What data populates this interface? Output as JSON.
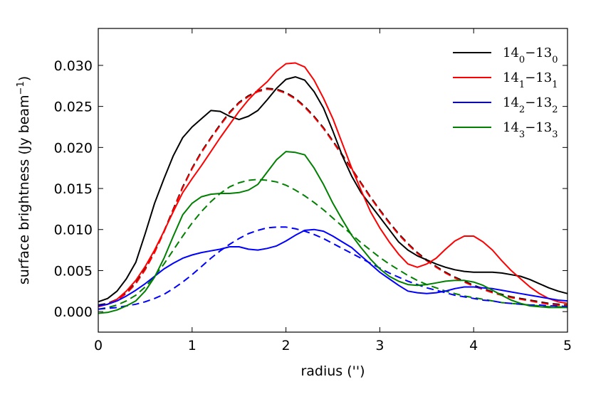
{
  "chart_data": {
    "type": "line",
    "xlabel": "radius ('')",
    "ylabel": "surface brightness (Jy beam",
    "ylabel_exp": "−1",
    "ylabel_close": ")",
    "xlim": [
      0,
      5
    ],
    "ylim": [
      -0.0025,
      0.0345
    ],
    "xticks": [
      0,
      1,
      2,
      3,
      4,
      5
    ],
    "xtick_labels": [
      "0",
      "1",
      "2",
      "3",
      "4",
      "5"
    ],
    "yticks": [
      0.0,
      0.005,
      0.01,
      0.015,
      0.02,
      0.025,
      0.03
    ],
    "ytick_labels": [
      "0.000",
      "0.005",
      "0.010",
      "0.015",
      "0.020",
      "0.025",
      "0.030"
    ],
    "grid": false,
    "legend_position": "top-right",
    "series": [
      {
        "name": "14_0-13_0",
        "legend": {
          "a": "14",
          "s1": "0",
          "b": "−13",
          "s2": "0"
        },
        "color": "#000000",
        "style": "solid",
        "x": [
          0,
          0.1,
          0.2,
          0.3,
          0.4,
          0.5,
          0.6,
          0.7,
          0.8,
          0.9,
          1.0,
          1.1,
          1.2,
          1.3,
          1.4,
          1.5,
          1.6,
          1.7,
          1.8,
          1.9,
          2.0,
          2.1,
          2.2,
          2.3,
          2.4,
          2.5,
          2.6,
          2.7,
          2.8,
          2.9,
          3.0,
          3.1,
          3.2,
          3.3,
          3.4,
          3.5,
          3.6,
          3.7,
          3.8,
          3.9,
          4.0,
          4.1,
          4.2,
          4.3,
          4.4,
          4.5,
          4.6,
          4.7,
          4.8,
          4.9,
          5.0
        ],
        "y": [
          0.0012,
          0.0016,
          0.0025,
          0.004,
          0.006,
          0.0095,
          0.0132,
          0.0162,
          0.019,
          0.0212,
          0.0225,
          0.0235,
          0.0245,
          0.0244,
          0.0238,
          0.0234,
          0.0238,
          0.0245,
          0.0258,
          0.0272,
          0.0283,
          0.0286,
          0.0282,
          0.0268,
          0.0248,
          0.022,
          0.019,
          0.0165,
          0.0145,
          0.013,
          0.0115,
          0.01,
          0.0085,
          0.0075,
          0.0068,
          0.0063,
          0.0058,
          0.0054,
          0.0051,
          0.0049,
          0.0048,
          0.0048,
          0.0048,
          0.0047,
          0.0045,
          0.0043,
          0.0039,
          0.0034,
          0.0029,
          0.0025,
          0.0022
        ]
      },
      {
        "name": "14_1-13_1",
        "legend": {
          "a": "14",
          "s1": "1",
          "b": "−13",
          "s2": "1"
        },
        "color": "#ff0000",
        "style": "solid",
        "x": [
          0,
          0.1,
          0.2,
          0.3,
          0.4,
          0.5,
          0.6,
          0.7,
          0.8,
          0.9,
          1.0,
          1.1,
          1.2,
          1.3,
          1.4,
          1.5,
          1.6,
          1.7,
          1.8,
          1.9,
          2.0,
          2.1,
          2.2,
          2.3,
          2.4,
          2.5,
          2.6,
          2.7,
          2.8,
          2.9,
          3.0,
          3.1,
          3.2,
          3.3,
          3.4,
          3.5,
          3.6,
          3.7,
          3.8,
          3.9,
          4.0,
          4.1,
          4.2,
          4.3,
          4.4,
          4.5,
          4.6,
          4.7,
          4.8,
          4.9,
          5.0
        ],
        "y": [
          0.0006,
          0.0009,
          0.0015,
          0.0025,
          0.0038,
          0.0055,
          0.0075,
          0.0098,
          0.0122,
          0.0145,
          0.0162,
          0.0178,
          0.0195,
          0.0212,
          0.0228,
          0.0244,
          0.0258,
          0.027,
          0.028,
          0.0293,
          0.0302,
          0.0303,
          0.0298,
          0.0282,
          0.026,
          0.0235,
          0.0205,
          0.0175,
          0.0148,
          0.0122,
          0.0102,
          0.0085,
          0.007,
          0.0058,
          0.0054,
          0.0058,
          0.0065,
          0.0076,
          0.0086,
          0.0092,
          0.0092,
          0.0085,
          0.0075,
          0.0062,
          0.005,
          0.004,
          0.003,
          0.0022,
          0.0016,
          0.0012,
          0.001
        ]
      },
      {
        "name": "14_2-13_2",
        "legend": {
          "a": "14",
          "s1": "2",
          "b": "−13",
          "s2": "2"
        },
        "color": "#0000ff",
        "style": "solid",
        "x": [
          0,
          0.1,
          0.2,
          0.3,
          0.4,
          0.5,
          0.6,
          0.7,
          0.8,
          0.9,
          1.0,
          1.1,
          1.2,
          1.3,
          1.4,
          1.5,
          1.6,
          1.7,
          1.8,
          1.9,
          2.0,
          2.1,
          2.2,
          2.3,
          2.4,
          2.5,
          2.6,
          2.7,
          2.8,
          2.9,
          3.0,
          3.1,
          3.2,
          3.3,
          3.4,
          3.5,
          3.6,
          3.7,
          3.8,
          3.9,
          4.0,
          4.1,
          4.2,
          4.3,
          4.4,
          4.5,
          4.6,
          4.7,
          4.8,
          4.9,
          5.0
        ],
        "y": [
          0.0007,
          0.0009,
          0.0013,
          0.0019,
          0.0026,
          0.0034,
          0.0043,
          0.0052,
          0.0059,
          0.0065,
          0.0069,
          0.0072,
          0.0074,
          0.0076,
          0.0079,
          0.0079,
          0.0076,
          0.0075,
          0.0077,
          0.008,
          0.0086,
          0.0093,
          0.0099,
          0.01,
          0.0098,
          0.0092,
          0.0085,
          0.0078,
          0.0068,
          0.0058,
          0.0048,
          0.004,
          0.0032,
          0.0025,
          0.0023,
          0.0022,
          0.0023,
          0.0025,
          0.0028,
          0.003,
          0.003,
          0.0029,
          0.0028,
          0.0026,
          0.0024,
          0.0022,
          0.002,
          0.0018,
          0.0016,
          0.0014,
          0.0013
        ]
      },
      {
        "name": "14_3-13_3",
        "legend": {
          "a": "14",
          "s1": "3",
          "b": "−13",
          "s2": "3"
        },
        "color": "#008000",
        "style": "solid",
        "x": [
          0,
          0.1,
          0.2,
          0.3,
          0.4,
          0.5,
          0.6,
          0.7,
          0.8,
          0.9,
          1.0,
          1.1,
          1.2,
          1.3,
          1.4,
          1.5,
          1.6,
          1.7,
          1.8,
          1.9,
          2.0,
          2.1,
          2.2,
          2.3,
          2.4,
          2.5,
          2.6,
          2.7,
          2.8,
          2.9,
          3.0,
          3.1,
          3.2,
          3.3,
          3.4,
          3.5,
          3.6,
          3.7,
          3.8,
          3.9,
          4.0,
          4.1,
          4.2,
          4.3,
          4.4,
          4.5,
          4.6,
          4.7,
          4.8,
          4.9,
          5.0
        ],
        "y": [
          -0.0002,
          -0.0001,
          0.0002,
          0.0007,
          0.0013,
          0.0025,
          0.0042,
          0.0065,
          0.0092,
          0.0118,
          0.0132,
          0.014,
          0.0143,
          0.0144,
          0.0144,
          0.0145,
          0.0148,
          0.0155,
          0.017,
          0.0185,
          0.0195,
          0.0194,
          0.0191,
          0.0175,
          0.0155,
          0.0132,
          0.0112,
          0.0093,
          0.0078,
          0.0064,
          0.0052,
          0.0043,
          0.0037,
          0.0033,
          0.0032,
          0.0033,
          0.0035,
          0.0037,
          0.0038,
          0.0038,
          0.0036,
          0.0032,
          0.0026,
          0.002,
          0.0014,
          0.001,
          0.0007,
          0.0006,
          0.0005,
          0.0005,
          0.0005
        ]
      },
      {
        "name": "model black",
        "color": "#000000",
        "style": "dashed",
        "x": [
          0,
          0.1,
          0.2,
          0.3,
          0.4,
          0.5,
          0.6,
          0.7,
          0.8,
          0.9,
          1.0,
          1.1,
          1.2,
          1.3,
          1.4,
          1.5,
          1.6,
          1.7,
          1.8,
          1.9,
          2.0,
          2.1,
          2.2,
          2.3,
          2.4,
          2.5,
          2.6,
          2.7,
          2.8,
          2.9,
          3.0,
          3.1,
          3.2,
          3.3,
          3.4,
          3.5,
          3.6,
          3.7,
          3.8,
          3.9,
          4.0,
          4.1,
          4.2,
          4.3,
          4.4,
          4.5,
          4.6,
          4.7,
          4.8,
          4.9,
          5.0
        ],
        "y": [
          0.0008,
          0.001,
          0.0015,
          0.0023,
          0.0035,
          0.0052,
          0.0073,
          0.0098,
          0.0125,
          0.0152,
          0.0175,
          0.0195,
          0.0212,
          0.0228,
          0.0243,
          0.0255,
          0.0263,
          0.0269,
          0.0272,
          0.0271,
          0.0267,
          0.026,
          0.025,
          0.0238,
          0.0224,
          0.0208,
          0.0191,
          0.0174,
          0.0157,
          0.014,
          0.0124,
          0.0109,
          0.0095,
          0.0083,
          0.0072,
          0.0063,
          0.0055,
          0.0048,
          0.0042,
          0.0037,
          0.0032,
          0.0028,
          0.0024,
          0.0021,
          0.0018,
          0.0016,
          0.0014,
          0.0012,
          0.001,
          0.0009,
          0.0008
        ]
      },
      {
        "name": "model red",
        "color": "#ff0000",
        "style": "dashed",
        "x": [
          0,
          0.1,
          0.2,
          0.3,
          0.4,
          0.5,
          0.6,
          0.7,
          0.8,
          0.9,
          1.0,
          1.1,
          1.2,
          1.3,
          1.4,
          1.5,
          1.6,
          1.7,
          1.8,
          1.9,
          2.0,
          2.1,
          2.2,
          2.3,
          2.4,
          2.5,
          2.6,
          2.7,
          2.8,
          2.9,
          3.0,
          3.1,
          3.2,
          3.3,
          3.4,
          3.5,
          3.6,
          3.7,
          3.8,
          3.9,
          4.0,
          4.1,
          4.2,
          4.3,
          4.4,
          4.5,
          4.6,
          4.7,
          4.8,
          4.9,
          5.0
        ],
        "y": [
          0.0007,
          0.0009,
          0.0014,
          0.0022,
          0.0034,
          0.0051,
          0.0072,
          0.0097,
          0.0124,
          0.0151,
          0.0174,
          0.0194,
          0.0211,
          0.0227,
          0.0242,
          0.0254,
          0.0262,
          0.0268,
          0.0271,
          0.027,
          0.0266,
          0.0259,
          0.0249,
          0.0237,
          0.0223,
          0.0207,
          0.019,
          0.0173,
          0.0156,
          0.0139,
          0.0123,
          0.0108,
          0.0094,
          0.0082,
          0.0071,
          0.0062,
          0.0054,
          0.0047,
          0.0041,
          0.0036,
          0.0031,
          0.0027,
          0.0023,
          0.002,
          0.0017,
          0.0015,
          0.0013,
          0.0011,
          0.0009,
          0.0008,
          0.0007
        ]
      },
      {
        "name": "model green",
        "color": "#008000",
        "style": "dashed",
        "x": [
          0,
          0.1,
          0.2,
          0.3,
          0.4,
          0.5,
          0.6,
          0.7,
          0.8,
          0.9,
          1.0,
          1.1,
          1.2,
          1.3,
          1.4,
          1.5,
          1.6,
          1.7,
          1.8,
          1.9,
          2.0,
          2.1,
          2.2,
          2.3,
          2.4,
          2.5,
          2.6,
          2.7,
          2.8,
          2.9,
          3.0,
          3.1,
          3.2,
          3.3,
          3.4,
          3.5,
          3.6,
          3.7,
          3.8,
          3.9,
          4.0,
          4.1,
          4.2,
          4.3,
          4.4,
          4.5,
          4.6,
          4.7,
          4.8,
          4.9,
          5.0
        ],
        "y": [
          0.0003,
          0.0005,
          0.0008,
          0.0013,
          0.002,
          0.003,
          0.0043,
          0.0058,
          0.0075,
          0.0092,
          0.0108,
          0.0122,
          0.0134,
          0.0144,
          0.0152,
          0.0157,
          0.016,
          0.0161,
          0.016,
          0.0158,
          0.0154,
          0.0148,
          0.0141,
          0.0133,
          0.0124,
          0.0114,
          0.0104,
          0.0094,
          0.0084,
          0.0075,
          0.0066,
          0.0058,
          0.0051,
          0.0044,
          0.0038,
          0.0033,
          0.0029,
          0.0025,
          0.0022,
          0.0019,
          0.0017,
          0.0015,
          0.0013,
          0.0011,
          0.001,
          0.0009,
          0.0008,
          0.0007,
          0.0006,
          0.0006,
          0.0005
        ]
      },
      {
        "name": "model blue",
        "color": "#0000ff",
        "style": "dashed",
        "x": [
          0,
          0.1,
          0.2,
          0.3,
          0.4,
          0.5,
          0.6,
          0.7,
          0.8,
          0.9,
          1.0,
          1.1,
          1.2,
          1.3,
          1.4,
          1.5,
          1.6,
          1.7,
          1.8,
          1.9,
          2.0,
          2.1,
          2.2,
          2.3,
          2.4,
          2.5,
          2.6,
          2.7,
          2.8,
          2.9,
          3.0,
          3.1,
          3.2,
          3.3,
          3.4,
          3.5,
          3.6,
          3.7,
          3.8,
          3.9,
          4.0,
          4.1,
          4.2,
          4.3,
          4.4,
          4.5,
          4.6,
          4.7,
          4.8,
          4.9,
          5.0
        ],
        "y": [
          0.0003,
          0.0004,
          0.0005,
          0.0007,
          0.0009,
          0.0012,
          0.0016,
          0.0021,
          0.0028,
          0.0036,
          0.0045,
          0.0055,
          0.0065,
          0.0074,
          0.0082,
          0.0089,
          0.0095,
          0.0099,
          0.0102,
          0.0103,
          0.0103,
          0.0101,
          0.0098,
          0.0094,
          0.0089,
          0.0083,
          0.0077,
          0.0071,
          0.0065,
          0.0059,
          0.0053,
          0.0047,
          0.0042,
          0.0037,
          0.0033,
          0.0029,
          0.0026,
          0.0023,
          0.002,
          0.0018,
          0.0016,
          0.0014,
          0.0013,
          0.0011,
          0.001,
          0.0009,
          0.0008,
          0.0008,
          0.0007,
          0.0007,
          0.0006
        ]
      }
    ]
  }
}
